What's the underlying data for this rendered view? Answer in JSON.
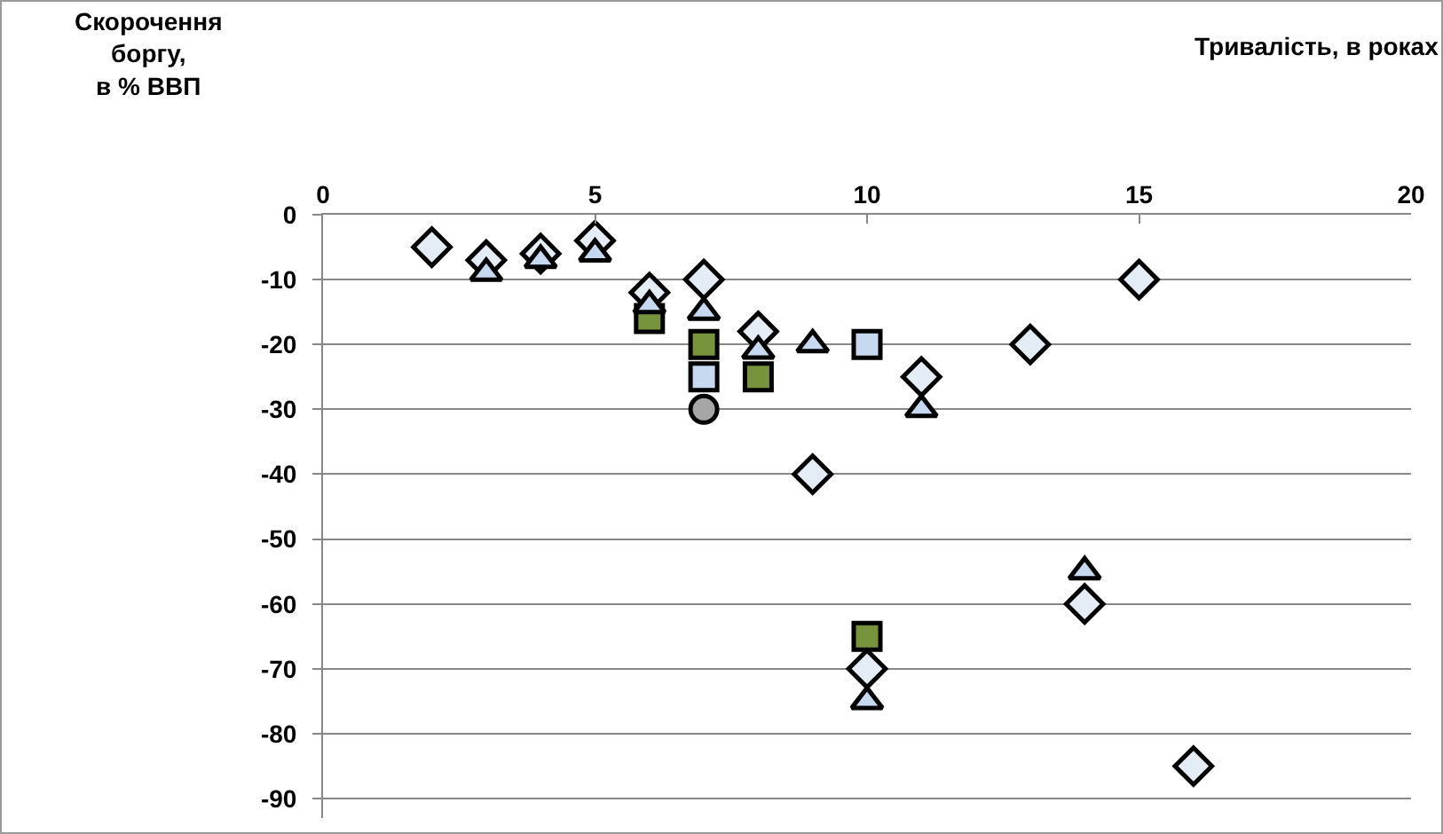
{
  "chart_data": {
    "type": "scatter",
    "xlabel": "Тривалість, в роках",
    "ylabel": "Скорочення\nборгу,\nв % ВВП",
    "xlim": [
      0,
      20
    ],
    "xticks": [
      0,
      5,
      10,
      15,
      20
    ],
    "ylim": [
      -93,
      0
    ],
    "yticks": [
      0,
      -10,
      -20,
      -30,
      -40,
      -50,
      -60,
      -70,
      -80,
      -90
    ],
    "grid": "y",
    "series": [
      {
        "color": "#77933c",
        "marker": "square",
        "x": [
          6,
          7,
          8,
          10
        ],
        "values": [
          -16,
          -20,
          -25,
          -65
        ]
      },
      {
        "color": "#c6d9f1",
        "marker": "square",
        "x": [
          7,
          10
        ],
        "values": [
          -25,
          -20
        ]
      },
      {
        "color": "#a6a6a6",
        "marker": "circle",
        "x": [
          7
        ],
        "values": [
          -30
        ]
      },
      {
        "color": "#e4ecf6",
        "marker": "diamond",
        "x": [
          2,
          3,
          4,
          5,
          6,
          7,
          8,
          9,
          10,
          11,
          13,
          14,
          15,
          16
        ],
        "values": [
          -5,
          -7,
          -6,
          -4,
          -12,
          -10,
          -18,
          -40,
          -70,
          -25,
          -20,
          -60,
          -10,
          -85
        ]
      },
      {
        "color": "#c6d9f1",
        "marker": "triangle",
        "x": [
          3,
          4,
          5,
          6,
          7,
          8,
          9,
          11,
          10,
          14
        ],
        "values": [
          -9,
          -7,
          -6,
          -14,
          -15,
          -21,
          -20,
          -30,
          -75,
          -55
        ]
      }
    ]
  }
}
